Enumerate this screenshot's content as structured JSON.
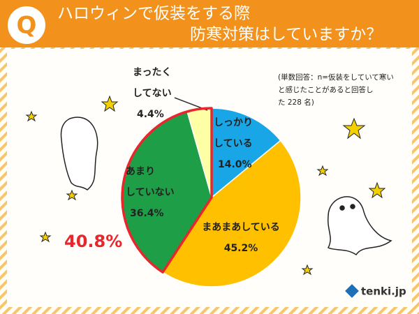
{
  "chart_data": {
    "type": "pie",
    "title_lines": [
      "ハロウィンで仮装をする際",
      "防寒対策はしていますか？"
    ],
    "badge": "Q",
    "note": "(単数回答：n=仮装をしていて寒いと感じたことがあると回答した 228 名)",
    "annotation": "40.8%",
    "logo": "tenki.jp",
    "categories": [
      "しっかりしている",
      "まあまあしている",
      "あまりしていない",
      "まったくしてない"
    ],
    "values": [
      14.0,
      45.2,
      36.4,
      4.4
    ],
    "value_labels": [
      "14.0%",
      "45.2%",
      "36.4%",
      "4.4%"
    ],
    "colors": [
      "#19a6e6",
      "#ffc000",
      "#1f9e48",
      "#ffffa6"
    ],
    "highlight_color": "#e8262b"
  }
}
